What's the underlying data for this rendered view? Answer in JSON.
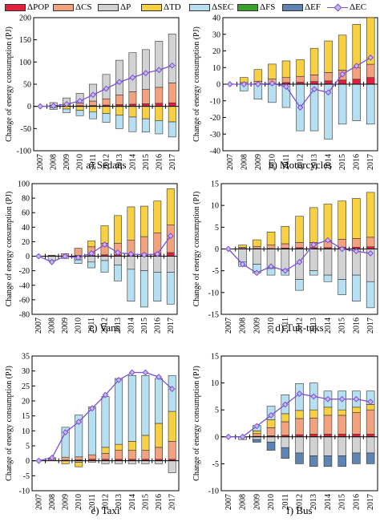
{
  "legend": [
    {
      "label": "ΔPOP",
      "color": "#e2203c",
      "kind": "bar"
    },
    {
      "label": "ΔCS",
      "color": "#f2a27e",
      "kind": "bar"
    },
    {
      "label": "ΔP",
      "color": "#d0d2d4",
      "kind": "bar"
    },
    {
      "label": "ΔTD",
      "color": "#f7d044",
      "kind": "bar"
    },
    {
      "label": "ΔSEC",
      "color": "#b6e0f2",
      "kind": "bar"
    },
    {
      "label": "ΔFS",
      "color": "#3ca02c",
      "kind": "bar"
    },
    {
      "label": "ΔEF",
      "color": "#5d84b2",
      "kind": "bar"
    },
    {
      "label": "ΔEC",
      "color": "#7b4fd6",
      "kind": "line"
    }
  ],
  "chart_data": [
    {
      "type": "bar",
      "caption": "a)   Sedans",
      "ylabel": "Change of energy consumption (PJ)",
      "categories": [
        "2007",
        "2008",
        "2009",
        "2010",
        "2011",
        "2012",
        "2013",
        "2014",
        "2015",
        "2016",
        "2017"
      ],
      "ylim": [
        -100,
        200
      ],
      "yticks": [
        -100,
        -50,
        0,
        50,
        100,
        150,
        200
      ],
      "series": [
        {
          "name": "ΔPOP",
          "values": [
            0,
            0.5,
            1,
            1.5,
            2,
            3,
            4,
            5,
            6,
            7,
            8
          ]
        },
        {
          "name": "ΔCS",
          "values": [
            0,
            2,
            4,
            6,
            10,
            14,
            22,
            28,
            32,
            36,
            45
          ]
        },
        {
          "name": "ΔP",
          "values": [
            0,
            6,
            14,
            22,
            38,
            55,
            78,
            88,
            90,
            104,
            110
          ]
        },
        {
          "name": "ΔTD",
          "values": [
            0,
            -3,
            -6,
            -9,
            -12,
            -16,
            -20,
            -24,
            -28,
            -32,
            -35
          ]
        },
        {
          "name": "ΔSEC",
          "values": [
            0,
            -4,
            -8,
            -12,
            -16,
            -20,
            -30,
            -33,
            -30,
            -30,
            -34
          ]
        },
        {
          "name": "ΔFS",
          "values": [
            0,
            0,
            0,
            0,
            0,
            0,
            0,
            0,
            0,
            0,
            0
          ]
        },
        {
          "name": "ΔEF",
          "values": [
            0,
            0,
            0,
            0,
            0,
            0,
            0,
            0,
            0,
            0,
            0
          ]
        }
      ],
      "line": {
        "name": "ΔEC",
        "values": [
          0,
          1,
          5,
          12,
          26,
          40,
          55,
          65,
          75,
          82,
          92
        ]
      }
    },
    {
      "type": "bar",
      "caption": "b)   Motorcycles",
      "ylabel": "Change of energy consumption (PJ)",
      "categories": [
        "2007",
        "2008",
        "2009",
        "2010",
        "2011",
        "2012",
        "2013",
        "2014",
        "2015",
        "2016",
        "2017"
      ],
      "ylim": [
        -40,
        40
      ],
      "yticks": [
        -40,
        -30,
        -20,
        -10,
        0,
        10,
        20,
        30,
        40
      ],
      "series": [
        {
          "name": "ΔPOP",
          "values": [
            0,
            0,
            0.3,
            0.6,
            1,
            1.2,
            1.6,
            2,
            2.5,
            3,
            4
          ]
        },
        {
          "name": "ΔCS",
          "values": [
            0,
            1,
            1.5,
            2.5,
            3,
            3.5,
            4,
            5,
            6,
            7,
            8
          ]
        },
        {
          "name": "ΔP",
          "values": [
            0,
            0,
            0,
            0,
            0,
            0,
            0,
            0,
            0,
            0,
            0
          ]
        },
        {
          "name": "ΔTD",
          "values": [
            0,
            3,
            7,
            9,
            10,
            10,
            16,
            19,
            21,
            26,
            28
          ]
        },
        {
          "name": "ΔSEC",
          "values": [
            0,
            -4,
            -9,
            -11,
            -14,
            -28,
            -28,
            -33,
            -24,
            -22,
            -24
          ]
        },
        {
          "name": "ΔFS",
          "values": [
            0,
            0,
            0,
            0,
            0,
            0,
            0,
            0,
            0,
            0,
            0
          ]
        },
        {
          "name": "ΔEF",
          "values": [
            0,
            0,
            0,
            0,
            0,
            0,
            0,
            0,
            0,
            0,
            0
          ]
        }
      ],
      "line": {
        "name": "ΔEC",
        "values": [
          0,
          0,
          0,
          0.5,
          -1.5,
          -14,
          -3,
          -5,
          6,
          11,
          16
        ]
      }
    },
    {
      "type": "bar",
      "caption": "c)   Vans",
      "ylabel": "Change of energy consumption (PJ)",
      "categories": [
        "2007",
        "2008",
        "2009",
        "2010",
        "2011",
        "2012",
        "2013",
        "2014",
        "2015",
        "2016",
        "2017"
      ],
      "ylim": [
        -80,
        100
      ],
      "yticks": [
        -80,
        -60,
        -40,
        -20,
        0,
        20,
        40,
        60,
        80,
        100
      ],
      "series": [
        {
          "name": "ΔPOP",
          "values": [
            0,
            0.5,
            0.5,
            1,
            1,
            2,
            2,
            2,
            3,
            4,
            5
          ]
        },
        {
          "name": "ΔCS",
          "values": [
            0,
            1,
            3,
            10,
            12,
            16,
            16,
            20,
            24,
            28,
            38
          ]
        },
        {
          "name": "ΔP",
          "values": [
            0,
            -6,
            -3,
            -5,
            -8,
            -6,
            -12,
            -18,
            -20,
            -22,
            -22
          ]
        },
        {
          "name": "ΔTD",
          "values": [
            0,
            0,
            0,
            0,
            8,
            24,
            38,
            46,
            42,
            44,
            50
          ]
        },
        {
          "name": "ΔSEC",
          "values": [
            0,
            0,
            0,
            -5,
            -8,
            -16,
            -22,
            -44,
            -50,
            -40,
            -44
          ]
        },
        {
          "name": "ΔFS",
          "values": [
            0,
            0,
            0,
            0,
            0,
            0,
            0,
            0,
            0,
            0,
            0
          ]
        },
        {
          "name": "ΔEF",
          "values": [
            0,
            0,
            0,
            0,
            0,
            0,
            0,
            0,
            0,
            0,
            0
          ]
        }
      ],
      "line": {
        "name": "ΔEC",
        "values": [
          0,
          -8,
          0,
          -2,
          4,
          16,
          5,
          3,
          2,
          3,
          28
        ]
      }
    },
    {
      "type": "bar",
      "caption": "d)   Tuk-tuks",
      "ylabel": "Change of energy consumption (PJ)",
      "categories": [
        "2007",
        "2008",
        "2009",
        "2010",
        "2011",
        "2012",
        "2013",
        "2014",
        "2015",
        "2016",
        "2017"
      ],
      "ylim": [
        -15,
        15
      ],
      "yticks": [
        -15,
        -10,
        -5,
        0,
        5,
        10,
        15
      ],
      "series": [
        {
          "name": "ΔPOP",
          "values": [
            0,
            0.1,
            0.1,
            0.1,
            0.2,
            0.3,
            0.3,
            0.3,
            0.4,
            0.4,
            0.5
          ]
        },
        {
          "name": "ΔCS",
          "values": [
            0,
            0.3,
            0.5,
            0.8,
            1,
            1.2,
            1.2,
            1.5,
            1.8,
            2,
            2.2
          ]
        },
        {
          "name": "ΔP",
          "values": [
            0,
            -3,
            -3.5,
            -4.5,
            -5,
            -7,
            -5,
            -6,
            -7,
            -6,
            -7.5
          ]
        },
        {
          "name": "ΔTD",
          "values": [
            0,
            0.5,
            1.5,
            3,
            4,
            6,
            8,
            8.5,
            8.8,
            9.2,
            10.3
          ]
        },
        {
          "name": "ΔSEC",
          "values": [
            0,
            -1,
            -2,
            -1.5,
            -1,
            -2.5,
            -1,
            -1.5,
            -3.5,
            -6,
            -6
          ]
        },
        {
          "name": "ΔFS",
          "values": [
            0,
            0,
            0,
            0,
            0,
            0,
            0,
            0,
            0,
            0,
            0
          ]
        },
        {
          "name": "ΔEF",
          "values": [
            0,
            0,
            0,
            0,
            0,
            0,
            0,
            0,
            0,
            0,
            0
          ]
        }
      ],
      "line": {
        "name": "ΔEC",
        "values": [
          0,
          -3.5,
          -5.5,
          -4,
          -5,
          -3,
          1,
          2,
          0,
          -0.5,
          -1
        ]
      }
    },
    {
      "type": "bar",
      "caption": "e)   Taxi",
      "ylabel": "Change of energy consumption (PJ)",
      "categories": [
        "2007",
        "2008",
        "2009",
        "2010",
        "2011",
        "2012",
        "2013",
        "2014",
        "2015",
        "2016",
        "2017"
      ],
      "ylim": [
        -10,
        35
      ],
      "yticks": [
        -10,
        -5,
        0,
        5,
        10,
        15,
        20,
        25,
        30,
        35
      ],
      "series": [
        {
          "name": "ΔPOP",
          "values": [
            0,
            0,
            0.2,
            0.3,
            0.5,
            0.5,
            0.5,
            0.5,
            0.5,
            0.5,
            0.5
          ]
        },
        {
          "name": "ΔCS",
          "values": [
            0,
            0.5,
            1,
            1,
            1.5,
            2,
            3,
            3,
            3,
            4,
            6
          ]
        },
        {
          "name": "ΔP",
          "values": [
            0,
            0,
            0,
            -0.5,
            -0.5,
            -1,
            -1,
            -1,
            -1,
            -1,
            -4
          ]
        },
        {
          "name": "ΔTD",
          "values": [
            0,
            0,
            -1,
            -1.5,
            0,
            2,
            2,
            3,
            5,
            8,
            10
          ]
        },
        {
          "name": "ΔSEC",
          "values": [
            0,
            0.5,
            10,
            14,
            16,
            17,
            22,
            22,
            20,
            15,
            12
          ]
        },
        {
          "name": "ΔFS",
          "values": [
            0,
            0,
            0,
            0,
            0,
            0,
            0,
            0,
            0,
            0,
            0
          ]
        },
        {
          "name": "ΔEF",
          "values": [
            0,
            0,
            0,
            0,
            0,
            0,
            0,
            0,
            0,
            0,
            0
          ]
        }
      ],
      "line": {
        "name": "ΔEC",
        "values": [
          0,
          1,
          9.5,
          13,
          17.5,
          22,
          27,
          29.5,
          29.5,
          28,
          24
        ]
      }
    },
    {
      "type": "bar",
      "caption": "f)   Bus",
      "ylabel": "Change of energy consumption (PJ)",
      "categories": [
        "2007",
        "2008",
        "2009",
        "2010",
        "2011",
        "2012",
        "2013",
        "2014",
        "2015",
        "2016",
        "2017"
      ],
      "ylim": [
        -10,
        15
      ],
      "yticks": [
        -10,
        -5,
        0,
        5,
        10,
        15
      ],
      "series": [
        {
          "name": "ΔPOP",
          "values": [
            0,
            0,
            0.1,
            0.2,
            0.3,
            0.4,
            0.5,
            0.5,
            0.5,
            0.5,
            0.5
          ]
        },
        {
          "name": "ΔCS",
          "values": [
            0,
            0,
            0.5,
            1.5,
            2.5,
            3,
            3,
            3.5,
            3.5,
            4,
            4.5
          ]
        },
        {
          "name": "ΔP",
          "values": [
            0,
            -0.5,
            -0.5,
            -1,
            -2,
            -3,
            -3.5,
            -3.5,
            -3.5,
            -3,
            -3
          ]
        },
        {
          "name": "ΔTD",
          "values": [
            0,
            0,
            0.5,
            1.5,
            1.5,
            1.5,
            1.5,
            1.5,
            1,
            1,
            1
          ]
        },
        {
          "name": "ΔSEC",
          "values": [
            0,
            0,
            1,
            2.5,
            3.5,
            5,
            5,
            3,
            3.5,
            3,
            2.5
          ]
        },
        {
          "name": "ΔFS",
          "values": [
            0,
            0,
            0,
            0,
            0,
            0,
            0,
            0,
            0,
            0,
            0
          ]
        },
        {
          "name": "ΔEF",
          "values": [
            0,
            0,
            -0.5,
            -1.5,
            -2,
            -2,
            -2,
            -2,
            -2,
            -2,
            -2
          ]
        }
      ],
      "line": {
        "name": "ΔEC",
        "values": [
          0,
          0,
          2,
          4,
          6,
          8,
          7.5,
          7,
          7,
          7,
          6.5
        ]
      }
    }
  ]
}
